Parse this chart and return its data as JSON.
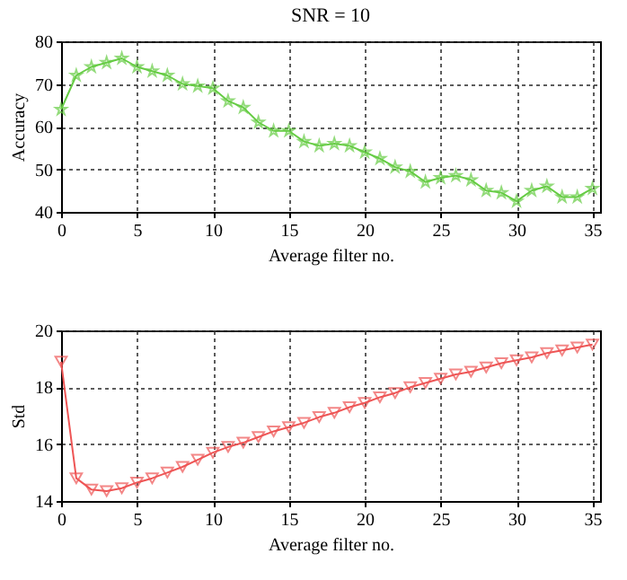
{
  "chart_data": [
    {
      "type": "line",
      "title": "SNR = 10",
      "xlabel": "Average filter no.",
      "ylabel": "Accuracy",
      "x": [
        0,
        1,
        2,
        3,
        4,
        5,
        6,
        7,
        8,
        9,
        10,
        11,
        12,
        13,
        14,
        15,
        16,
        17,
        18,
        19,
        20,
        21,
        22,
        23,
        24,
        25,
        26,
        27,
        28,
        29,
        30,
        31,
        32,
        33,
        34,
        35
      ],
      "series": [
        {
          "color": "#66cc44",
          "values": [
            64,
            72,
            74,
            75,
            76,
            74,
            73,
            72,
            70,
            69.5,
            69,
            66,
            64.5,
            61,
            59,
            59,
            56.5,
            55.5,
            56,
            55.5,
            54,
            52.5,
            50.5,
            49.5,
            47,
            48,
            48.5,
            47.5,
            45,
            44.5,
            42.5,
            45,
            46,
            43.5,
            43.5,
            45.5
          ]
        }
      ],
      "xlim": [
        0,
        35.5
      ],
      "xticks": [
        0,
        5,
        10,
        15,
        20,
        25,
        30,
        35
      ],
      "ylim": [
        40,
        80
      ],
      "yticks": [
        40,
        50,
        60,
        70,
        80
      ],
      "grid": true,
      "marker": "star"
    },
    {
      "type": "line",
      "xlabel": "Average filter no.",
      "ylabel": "Std",
      "x": [
        0,
        1,
        2,
        3,
        4,
        5,
        6,
        7,
        8,
        9,
        10,
        11,
        12,
        13,
        14,
        15,
        16,
        17,
        18,
        19,
        20,
        21,
        22,
        23,
        24,
        25,
        26,
        27,
        28,
        29,
        30,
        31,
        32,
        33,
        34,
        35
      ],
      "series": [
        {
          "color": "#ee5555",
          "values": [
            18.9,
            14.8,
            14.4,
            14.35,
            14.45,
            14.65,
            14.8,
            15.0,
            15.2,
            15.45,
            15.7,
            15.9,
            16.05,
            16.25,
            16.45,
            16.6,
            16.75,
            16.95,
            17.1,
            17.3,
            17.45,
            17.65,
            17.8,
            18.0,
            18.15,
            18.3,
            18.45,
            18.55,
            18.7,
            18.85,
            18.95,
            19.05,
            19.2,
            19.3,
            19.4,
            19.5
          ]
        }
      ],
      "xlim": [
        0,
        35.5
      ],
      "xticks": [
        0,
        5,
        10,
        15,
        20,
        25,
        30,
        35
      ],
      "ylim": [
        14,
        20
      ],
      "yticks": [
        14,
        16,
        18,
        20
      ],
      "grid": true,
      "marker": "triangle"
    }
  ]
}
